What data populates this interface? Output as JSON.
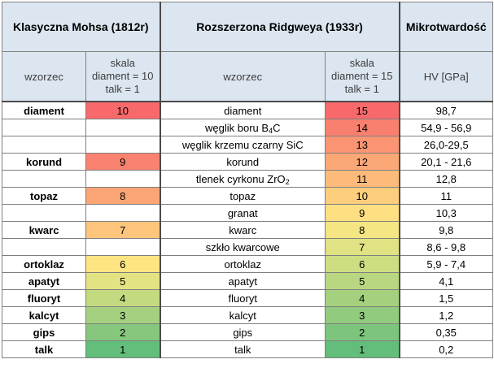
{
  "headers": {
    "mohs": "Klasyczna Mohsa (1812r)",
    "ridgway": "Rozszerzona Ridgweya (1933r)",
    "micro": "Mikrotwardość"
  },
  "subheaders": {
    "mohs_formula": "wzorzec",
    "mohs_scale": [
      "skala",
      "diament = 10",
      "talk = 1"
    ],
    "ridgway_formula": "wzorzec",
    "ridgway_scale": [
      "skala",
      "diament = 15",
      "talk = 1"
    ],
    "micro_unit": "HV [GPa]"
  },
  "rows": [
    {
      "mohs_name": "diament",
      "mohs_value": "10",
      "mohs_color": "#f8696b",
      "ridgway_name": "diament",
      "ridgway_value": "15",
      "ridgway_color": "#f8696b",
      "hv": "98,7"
    },
    {
      "mohs_name": "",
      "mohs_value": "",
      "mohs_color": "#ffffff",
      "ridgway_name": "węglik boru B",
      "ridgway_sub": "4",
      "ridgway_suffix": "C",
      "ridgway_value": "14",
      "ridgway_color": "#f9806e",
      "hv": "54,9 - 56,9"
    },
    {
      "mohs_name": "",
      "mohs_value": "",
      "mohs_color": "#ffffff",
      "ridgway_name": "węglik krzemu czarny SiC",
      "ridgway_value": "13",
      "ridgway_color": "#fa9473",
      "hv": "26,0-29,5"
    },
    {
      "mohs_name": "korund",
      "mohs_value": "9",
      "mohs_color": "#f98370",
      "ridgway_name": "korund",
      "ridgway_value": "12",
      "ridgway_color": "#fba776",
      "hv": "20,1 - 21,6"
    },
    {
      "mohs_name": "",
      "mohs_value": "",
      "mohs_color": "#ffffff",
      "ridgway_name": "tlenek cyrkonu ZrO",
      "ridgway_sub": "2",
      "ridgway_suffix": "",
      "ridgway_value": "11",
      "ridgway_color": "#fcbb7a",
      "hv": "12,8"
    },
    {
      "mohs_name": "topaz",
      "mohs_value": "8",
      "mohs_color": "#fba576",
      "ridgway_name": "topaz",
      "ridgway_value": "10",
      "ridgway_color": "#fdcd7e",
      "hv": "11"
    },
    {
      "mohs_name": "",
      "mohs_value": "",
      "mohs_color": "#ffffff",
      "ridgway_name": "granat",
      "ridgway_value": "9",
      "ridgway_color": "#fee082",
      "hv": "10,3"
    },
    {
      "mohs_name": "kwarc",
      "mohs_value": "7",
      "mohs_color": "#fdc57c",
      "ridgway_name": "kwarc",
      "ridgway_value": "8",
      "ridgway_color": "#f4e683",
      "hv": "9,8"
    },
    {
      "mohs_name": "",
      "mohs_value": "",
      "mohs_color": "#ffffff",
      "ridgway_name": "szkło kwarcowe",
      "ridgway_value": "7",
      "ridgway_color": "#e0e283",
      "hv": "8,6 - 9,8"
    },
    {
      "mohs_name": "ortoklaz",
      "mohs_value": "6",
      "mohs_color": "#fee482",
      "ridgway_name": "ortoklaz",
      "ridgway_value": "6",
      "ridgway_color": "#cddd82",
      "hv": "5,9 - 7,4"
    },
    {
      "mohs_name": "apatyt",
      "mohs_value": "5",
      "mohs_color": "#e4e383",
      "ridgway_name": "apatyt",
      "ridgway_value": "5",
      "ridgway_color": "#b9d780",
      "hv": "4,1"
    },
    {
      "mohs_name": "fluoryt",
      "mohs_value": "4",
      "mohs_color": "#c4da81",
      "ridgway_name": "fluoryt",
      "ridgway_value": "4",
      "ridgway_color": "#a5d17f",
      "hv": "1,5"
    },
    {
      "mohs_name": "kalcyt",
      "mohs_value": "3",
      "mohs_color": "#a5d07f",
      "ridgway_name": "kalcyt",
      "ridgway_value": "3",
      "ridgway_color": "#91cb7e",
      "hv": "1,2"
    },
    {
      "mohs_name": "gips",
      "mohs_value": "2",
      "mohs_color": "#86c67d",
      "ridgway_name": "gips",
      "ridgway_value": "2",
      "ridgway_color": "#7dc57c",
      "hv": "0,35"
    },
    {
      "mohs_name": "talk",
      "mohs_value": "1",
      "mohs_color": "#63be7b",
      "ridgway_name": "talk",
      "ridgway_value": "1",
      "ridgway_color": "#63be7b",
      "hv": "0,2"
    }
  ]
}
